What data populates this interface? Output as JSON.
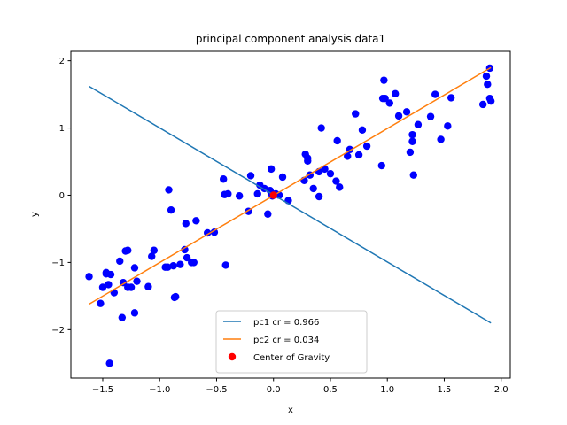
{
  "chart_data": {
    "type": "scatter",
    "title": "principal component analysis data1",
    "xlabel": "x",
    "ylabel": "y",
    "xlim": [
      -1.78,
      2.08
    ],
    "ylim": [
      -2.72,
      2.14
    ],
    "xticks": [
      -1.5,
      -1.0,
      -0.5,
      0.0,
      0.5,
      1.0,
      1.5,
      2.0
    ],
    "xtick_labels": [
      "−1.5",
      "−1.0",
      "−0.5",
      "0.0",
      "0.5",
      "1.0",
      "1.5",
      "2.0"
    ],
    "yticks": [
      -2,
      -1,
      0,
      1,
      2
    ],
    "ytick_labels": [
      "−2",
      "−1",
      "0",
      "1",
      "2"
    ],
    "grid": false,
    "legend_position": "lower-center",
    "colors": {
      "points": "#0000ff",
      "pc1": "#1f77b4",
      "pc2": "#ff7f0e",
      "center": "#ff0000"
    },
    "series": [
      {
        "name": "pc1 cr = 0.966",
        "kind": "line",
        "x": [
          -1.62,
          1.91
        ],
        "y": [
          1.62,
          -1.9
        ]
      },
      {
        "name": "pc2 cr = 0.034",
        "kind": "line",
        "x": [
          -1.62,
          1.91
        ],
        "y": [
          -1.62,
          1.9
        ]
      },
      {
        "name": "Center of Gravity",
        "kind": "scatter",
        "x": [
          0.0
        ],
        "y": [
          0.0
        ]
      }
    ],
    "points": {
      "x": [
        -1.62,
        -1.52,
        -1.5,
        -1.47,
        -1.45,
        -1.43,
        -1.4,
        -1.35,
        -1.33,
        -1.3,
        -1.28,
        -1.25,
        -1.22,
        -1.2,
        -1.22,
        -1.44,
        -1.05,
        -1.07,
        -1.1,
        -0.95,
        -0.92,
        -0.9,
        -0.87,
        -0.88,
        -0.82,
        -0.78,
        -0.72,
        -0.7,
        -0.68,
        -0.77,
        -0.76,
        -0.52,
        -0.44,
        -0.43,
        -0.42,
        -0.4,
        -0.3,
        -0.22,
        -0.2,
        -0.14,
        -0.12,
        -0.08,
        -0.05,
        -0.03,
        -0.02,
        0.02,
        -0.01,
        0.08,
        0.13,
        0.27,
        0.28,
        0.3,
        0.32,
        0.35,
        0.4,
        0.42,
        0.45,
        0.5,
        0.55,
        0.56,
        0.58,
        0.65,
        0.67,
        0.72,
        0.75,
        0.78,
        0.82,
        0.95,
        0.97,
        0.98,
        1.02,
        1.07,
        1.1,
        1.17,
        1.2,
        1.22,
        1.23,
        1.27,
        1.38,
        1.42,
        1.47,
        1.53,
        1.56,
        1.84,
        1.87,
        1.88,
        1.9,
        1.91,
        1.9,
        -1.47,
        -1.28,
        -1.32,
        -0.86,
        -0.93,
        -0.58,
        0.3,
        0.4,
        0.96,
        1.22,
        -0.02,
        0.05
      ],
      "y": [
        -1.21,
        -1.61,
        -1.37,
        -1.15,
        -1.33,
        -1.18,
        -1.45,
        -0.98,
        -1.82,
        -0.83,
        -1.37,
        -1.37,
        -1.08,
        -1.28,
        -1.75,
        -2.5,
        -0.82,
        -0.91,
        -1.36,
        -1.07,
        0.08,
        -0.22,
        -1.52,
        -1.05,
        -1.03,
        -0.81,
        -1.0,
        -1.0,
        -0.38,
        -0.42,
        -0.93,
        -0.55,
        0.24,
        0.01,
        -1.04,
        0.02,
        -0.01,
        -0.24,
        0.29,
        0.02,
        0.15,
        0.1,
        -0.28,
        0.07,
        0.39,
        0.02,
        -0.01,
        0.27,
        -0.08,
        0.22,
        0.61,
        0.51,
        0.3,
        0.1,
        -0.02,
        1.0,
        0.39,
        0.32,
        0.21,
        0.81,
        0.12,
        0.58,
        0.68,
        1.21,
        0.6,
        0.97,
        0.73,
        0.44,
        1.71,
        1.44,
        1.37,
        1.51,
        1.18,
        1.24,
        0.64,
        0.9,
        0.3,
        1.05,
        1.17,
        1.5,
        0.83,
        1.03,
        1.45,
        1.35,
        1.77,
        1.65,
        1.89,
        1.4,
        1.44,
        -1.17,
        -0.82,
        -1.3,
        -1.51,
        -1.07,
        -0.56,
        0.55,
        0.35,
        1.44,
        0.8,
        0.03,
        0.0
      ]
    },
    "legend": [
      {
        "label": "pc1 cr = 0.966",
        "kind": "line",
        "color": "#1f77b4"
      },
      {
        "label": "pc2 cr = 0.034",
        "kind": "line",
        "color": "#ff7f0e"
      },
      {
        "label": "Center of Gravity",
        "kind": "marker",
        "color": "#ff0000"
      }
    ]
  }
}
